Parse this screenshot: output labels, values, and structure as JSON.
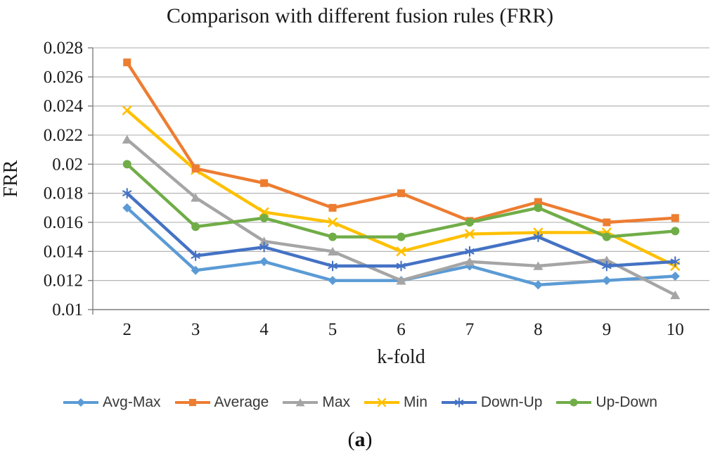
{
  "figure": {
    "caption": {
      "open": "(",
      "letter": "a",
      "close": ")"
    }
  },
  "chart_data": {
    "type": "line",
    "title": "Comparison with different fusion rules (FRR)",
    "xlabel": "k-fold",
    "ylabel": "FRR",
    "categories": [
      "2",
      "3",
      "4",
      "5",
      "6",
      "7",
      "8",
      "9",
      "10"
    ],
    "ylim": [
      0.01,
      0.028
    ],
    "ytick_step": 0.002,
    "yticks": [
      "0.028",
      "0.026",
      "0.024",
      "0.022",
      "0.02",
      "0.018",
      "0.016",
      "0.014",
      "0.012",
      "0.01"
    ],
    "grid": true,
    "legend_position": "bottom",
    "series": [
      {
        "name": "Avg-Max",
        "marker": "diamond",
        "color": "#5B9BD5",
        "values": [
          0.017,
          0.0127,
          0.0133,
          0.012,
          0.012,
          0.013,
          0.0117,
          0.012,
          0.0123
        ]
      },
      {
        "name": "Average",
        "marker": "square",
        "color": "#ED7D31",
        "values": [
          0.027,
          0.0197,
          0.0187,
          0.017,
          0.018,
          0.0161,
          0.0174,
          0.016,
          0.0163
        ]
      },
      {
        "name": "Max",
        "marker": "triangle",
        "color": "#A5A5A5",
        "values": [
          0.0217,
          0.0177,
          0.0147,
          0.014,
          0.012,
          0.0133,
          0.013,
          0.0134,
          0.011
        ]
      },
      {
        "name": "Min",
        "marker": "x",
        "color": "#FFC000",
        "values": [
          0.0237,
          0.0196,
          0.0167,
          0.016,
          0.014,
          0.0152,
          0.0153,
          0.0153,
          0.013
        ]
      },
      {
        "name": "Down-Up",
        "marker": "asterisk",
        "color": "#4472C4",
        "values": [
          0.018,
          0.0137,
          0.0143,
          0.013,
          0.013,
          0.014,
          0.015,
          0.013,
          0.0133
        ]
      },
      {
        "name": "Up-Down",
        "marker": "circle",
        "color": "#70AD47",
        "values": [
          0.02,
          0.0157,
          0.0163,
          0.015,
          0.015,
          0.016,
          0.017,
          0.015,
          0.0154
        ]
      }
    ],
    "colors": {
      "grid": "#ABABAB",
      "axis": "#7F7F7F",
      "text": "#1a1a1a"
    }
  }
}
